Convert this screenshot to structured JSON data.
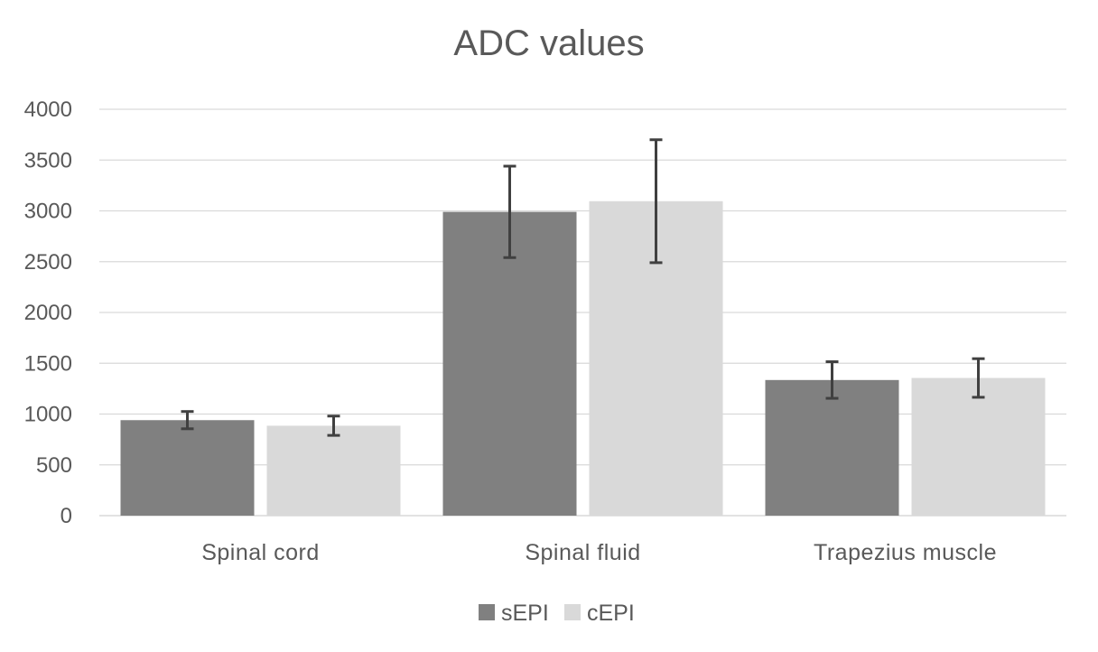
{
  "chart_data": {
    "type": "bar",
    "title": "ADC values",
    "categories": [
      "Spinal cord",
      "Spinal fluid",
      "Trapezius muscle"
    ],
    "series": [
      {
        "name": "sEPI",
        "color": "#808080",
        "values": [
          940,
          2990,
          1335
        ],
        "error": [
          85,
          450,
          180
        ]
      },
      {
        "name": "cEPI",
        "color": "#d9d9d9",
        "values": [
          885,
          3095,
          1355
        ],
        "error": [
          95,
          605,
          190
        ]
      }
    ],
    "yticks": [
      0,
      500,
      1000,
      1500,
      2000,
      2500,
      3000,
      3500,
      4000
    ],
    "ylim": [
      0,
      4000
    ],
    "xlabel": "",
    "ylabel": "",
    "grid": true,
    "legend_position": "bottom",
    "gridline_color": "#d9d9d9",
    "errorbar_color": "#404040"
  }
}
